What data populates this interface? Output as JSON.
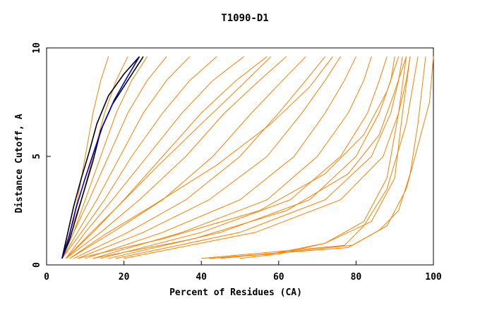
{
  "chart_data": {
    "type": "line",
    "title": "T1090-D1",
    "xlabel": "Percent of Residues (CA)",
    "ylabel": "Distance Cutoff, A",
    "xlim": [
      0,
      100
    ],
    "ylim": [
      0,
      10
    ],
    "x_ticks": [
      "0",
      "20",
      "40",
      "60",
      "80",
      "100"
    ],
    "y_ticks": [
      "0",
      "5",
      "10"
    ],
    "grid": false,
    "colors": {
      "background_series": "#ff8000",
      "highlight_black": "#000000",
      "highlight_blue": "#0000cc"
    },
    "series": [
      {
        "color": "#ff8000",
        "x": [
          4,
          6,
          8,
          10,
          12,
          14,
          16
        ],
        "y": [
          0.3,
          1.5,
          3,
          5,
          7,
          8.5,
          9.6
        ]
      },
      {
        "color": "#ff8000",
        "x": [
          4,
          6,
          9,
          12,
          15,
          18,
          21
        ],
        "y": [
          0.3,
          1.5,
          3,
          5,
          7,
          8.5,
          9.6
        ]
      },
      {
        "color": "#ff8000",
        "x": [
          4,
          7,
          10,
          14,
          18,
          22,
          26
        ],
        "y": [
          0.3,
          1.5,
          3,
          5,
          7,
          8.5,
          9.6
        ]
      },
      {
        "color": "#ff8000",
        "x": [
          4,
          7,
          11,
          16,
          21,
          26,
          31
        ],
        "y": [
          0.3,
          1.5,
          3,
          5,
          7,
          8.5,
          9.6
        ]
      },
      {
        "color": "#ff8000",
        "x": [
          4,
          8,
          13,
          19,
          25,
          31,
          37
        ],
        "y": [
          0.3,
          1.5,
          3,
          5,
          7,
          8.5,
          9.6
        ]
      },
      {
        "color": "#ff8000",
        "x": [
          4,
          9,
          15,
          22,
          30,
          37,
          44
        ],
        "y": [
          0.3,
          1.5,
          3,
          5,
          7,
          8.5,
          9.6
        ]
      },
      {
        "color": "#ff8000",
        "x": [
          5,
          10,
          17,
          26,
          35,
          43,
          51
        ],
        "y": [
          0.3,
          1.5,
          3,
          5,
          7,
          8.5,
          9.6
        ]
      },
      {
        "color": "#ff8000",
        "x": [
          5,
          12,
          20,
          30,
          40,
          49,
          57
        ],
        "y": [
          0.3,
          1.5,
          3,
          5,
          7,
          8.5,
          9.6
        ]
      },
      {
        "color": "#ff8000",
        "x": [
          5,
          14,
          24,
          36,
          46,
          55,
          62
        ],
        "y": [
          0.3,
          1.5,
          3,
          5,
          7,
          8.5,
          9.6
        ]
      },
      {
        "color": "#ff8000",
        "x": [
          6,
          17,
          30,
          43,
          53,
          61,
          67
        ],
        "y": [
          0.3,
          1.5,
          3,
          5,
          7,
          8.5,
          9.6
        ]
      },
      {
        "color": "#ff8000",
        "x": [
          7,
          21,
          36,
          50,
          60,
          67,
          72
        ],
        "y": [
          0.3,
          1.5,
          3,
          5,
          7,
          8.5,
          9.6
        ]
      },
      {
        "color": "#ff8000",
        "x": [
          8,
          25,
          42,
          57,
          66,
          72,
          76
        ],
        "y": [
          0.3,
          1.5,
          3,
          5,
          7,
          8.5,
          9.6
        ]
      },
      {
        "color": "#ff8000",
        "x": [
          10,
          30,
          50,
          64,
          72,
          77,
          80
        ],
        "y": [
          0.3,
          1.5,
          3,
          5,
          7,
          8.5,
          9.6
        ]
      },
      {
        "color": "#ff8000",
        "x": [
          12,
          35,
          57,
          70,
          78,
          82,
          84
        ],
        "y": [
          0.3,
          1.5,
          3,
          5,
          7,
          8.5,
          9.6
        ]
      },
      {
        "color": "#ff8000",
        "x": [
          14,
          40,
          63,
          76,
          83,
          86,
          88
        ],
        "y": [
          0.3,
          1.5,
          3,
          5,
          7,
          8.5,
          9.6
        ]
      },
      {
        "color": "#ff8000",
        "x": [
          16,
          45,
          68,
          80,
          86,
          89,
          90
        ],
        "y": [
          0.3,
          1.5,
          3,
          5,
          7,
          8.5,
          9.6
        ]
      },
      {
        "color": "#ff8000",
        "x": [
          18,
          50,
          72,
          84,
          89,
          91,
          92
        ],
        "y": [
          0.3,
          1.5,
          3,
          5,
          7,
          8.5,
          9.6
        ]
      },
      {
        "color": "#ff8000",
        "x": [
          20,
          54,
          76,
          87,
          91,
          93,
          94
        ],
        "y": [
          0.3,
          1.5,
          3,
          5,
          7,
          8.5,
          9.6
        ]
      },
      {
        "color": "#ff8000",
        "x": [
          8,
          30,
          55,
          72,
          82,
          88,
          91
        ],
        "y": [
          0.3,
          1.2,
          2.5,
          4.2,
          6,
          8,
          9.6
        ]
      },
      {
        "color": "#ff8000",
        "x": [
          12,
          38,
          62,
          78,
          86,
          90,
          93
        ],
        "y": [
          0.3,
          1.2,
          2.5,
          4.2,
          6,
          8,
          9.6
        ]
      },
      {
        "color": "#ff8000",
        "x": [
          6,
          15,
          28,
          44,
          58,
          68,
          74
        ],
        "y": [
          0.3,
          1.4,
          2.8,
          4.6,
          6.5,
          8.2,
          9.6
        ]
      },
      {
        "color": "#ff8000",
        "x": [
          5,
          11,
          19,
          29,
          40,
          50,
          58
        ],
        "y": [
          0.3,
          1.4,
          2.8,
          4.6,
          6.5,
          8.2,
          9.6
        ]
      },
      {
        "color": "#ff8000",
        "x": [
          50,
          60,
          72,
          82,
          88,
          91,
          93
        ],
        "y": [
          0.3,
          0.5,
          1,
          2,
          4,
          7,
          9.6
        ]
      },
      {
        "color": "#ff8000",
        "x": [
          42,
          58,
          72,
          84,
          90,
          92,
          94
        ],
        "y": [
          0.3,
          0.5,
          1,
          2,
          4,
          7,
          9.6
        ]
      },
      {
        "color": "#ff8000",
        "x": [
          40,
          65,
          77,
          82,
          88,
          93,
          96
        ],
        "y": [
          0.3,
          0.7,
          0.9,
          1.8,
          3.5,
          6.5,
          9.6
        ]
      },
      {
        "color": "#ff8000",
        "x": [
          42,
          78,
          86,
          91,
          94,
          96,
          98
        ],
        "y": [
          0.3,
          0.8,
          1.6,
          2.5,
          4.2,
          6.5,
          9.6
        ]
      },
      {
        "color": "#ff8000",
        "x": [
          45,
          79,
          88,
          93,
          96,
          99,
          100
        ],
        "y": [
          0.3,
          0.9,
          1.8,
          3.5,
          5.5,
          7.5,
          9.6
        ]
      },
      {
        "color": "#000000",
        "x": [
          4,
          6,
          8,
          10,
          12,
          14,
          17,
          21,
          25
        ],
        "y": [
          0.3,
          1.2,
          2.4,
          3.6,
          4.8,
          6.2,
          7.4,
          8.5,
          9.6
        ]
      },
      {
        "color": "#000000",
        "x": [
          4,
          5.5,
          7,
          9,
          11,
          13,
          16,
          20,
          24
        ],
        "y": [
          0.3,
          1.5,
          2.7,
          4,
          5.2,
          6.5,
          7.8,
          8.8,
          9.6
        ]
      },
      {
        "color": "#0000cc",
        "x": [
          4,
          5.8,
          7.6,
          9.8,
          12,
          14.5,
          17.5,
          21,
          24
        ],
        "y": [
          0.3,
          1.3,
          2.6,
          3.9,
          5.1,
          6.4,
          7.6,
          8.7,
          9.6
        ]
      }
    ]
  }
}
